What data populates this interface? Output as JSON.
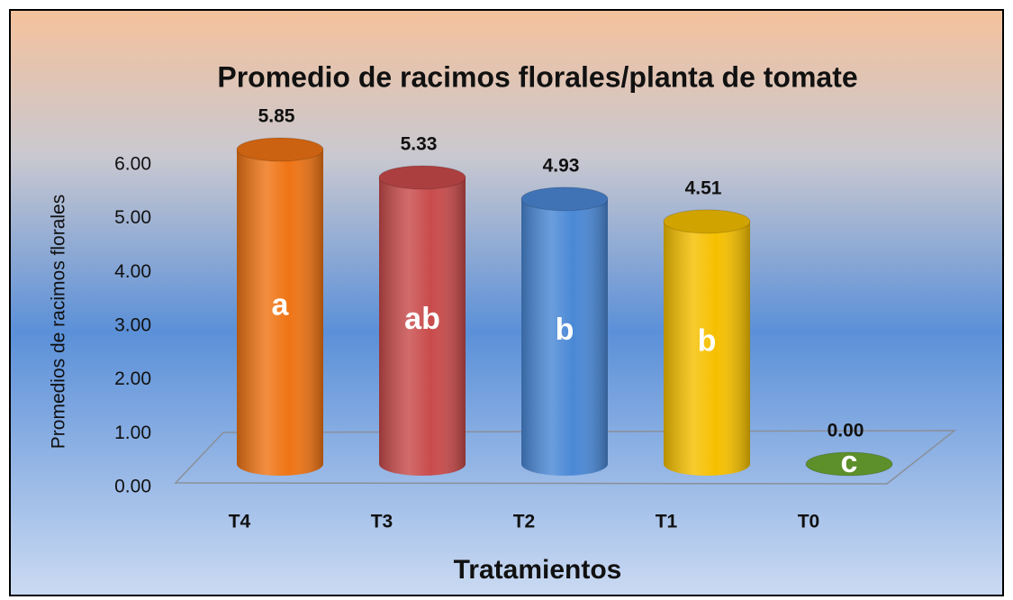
{
  "chart_data": {
    "type": "bar",
    "title": "Promedio de racimos florales/planta de tomate",
    "x_label": "Tratamientos",
    "y_label": "Promedios de racimos florales",
    "categories": [
      "T4",
      "T3",
      "T2",
      "T1",
      "T0"
    ],
    "values": [
      5.85,
      5.33,
      4.93,
      4.51,
      0
    ],
    "value_labels": [
      "5.85",
      "5.33",
      "4.93",
      "4.51",
      "0.00"
    ],
    "letters": [
      "a",
      "ab",
      "b",
      "b",
      "c"
    ],
    "colors": [
      "#ef7414",
      "#c94b4b",
      "#4a88d6",
      "#f6c000",
      "#6ea832"
    ],
    "ylim": [
      0,
      6
    ],
    "yticks": [
      {
        "value": 0,
        "label": "0.00"
      },
      {
        "value": 1,
        "label": "1.00"
      },
      {
        "value": 2,
        "label": "2.00"
      },
      {
        "value": 3,
        "label": "3.00"
      },
      {
        "value": 4,
        "label": "4.00"
      },
      {
        "value": 5,
        "label": "5.00"
      },
      {
        "value": 6,
        "label": "6.00"
      }
    ],
    "grid": false
  }
}
